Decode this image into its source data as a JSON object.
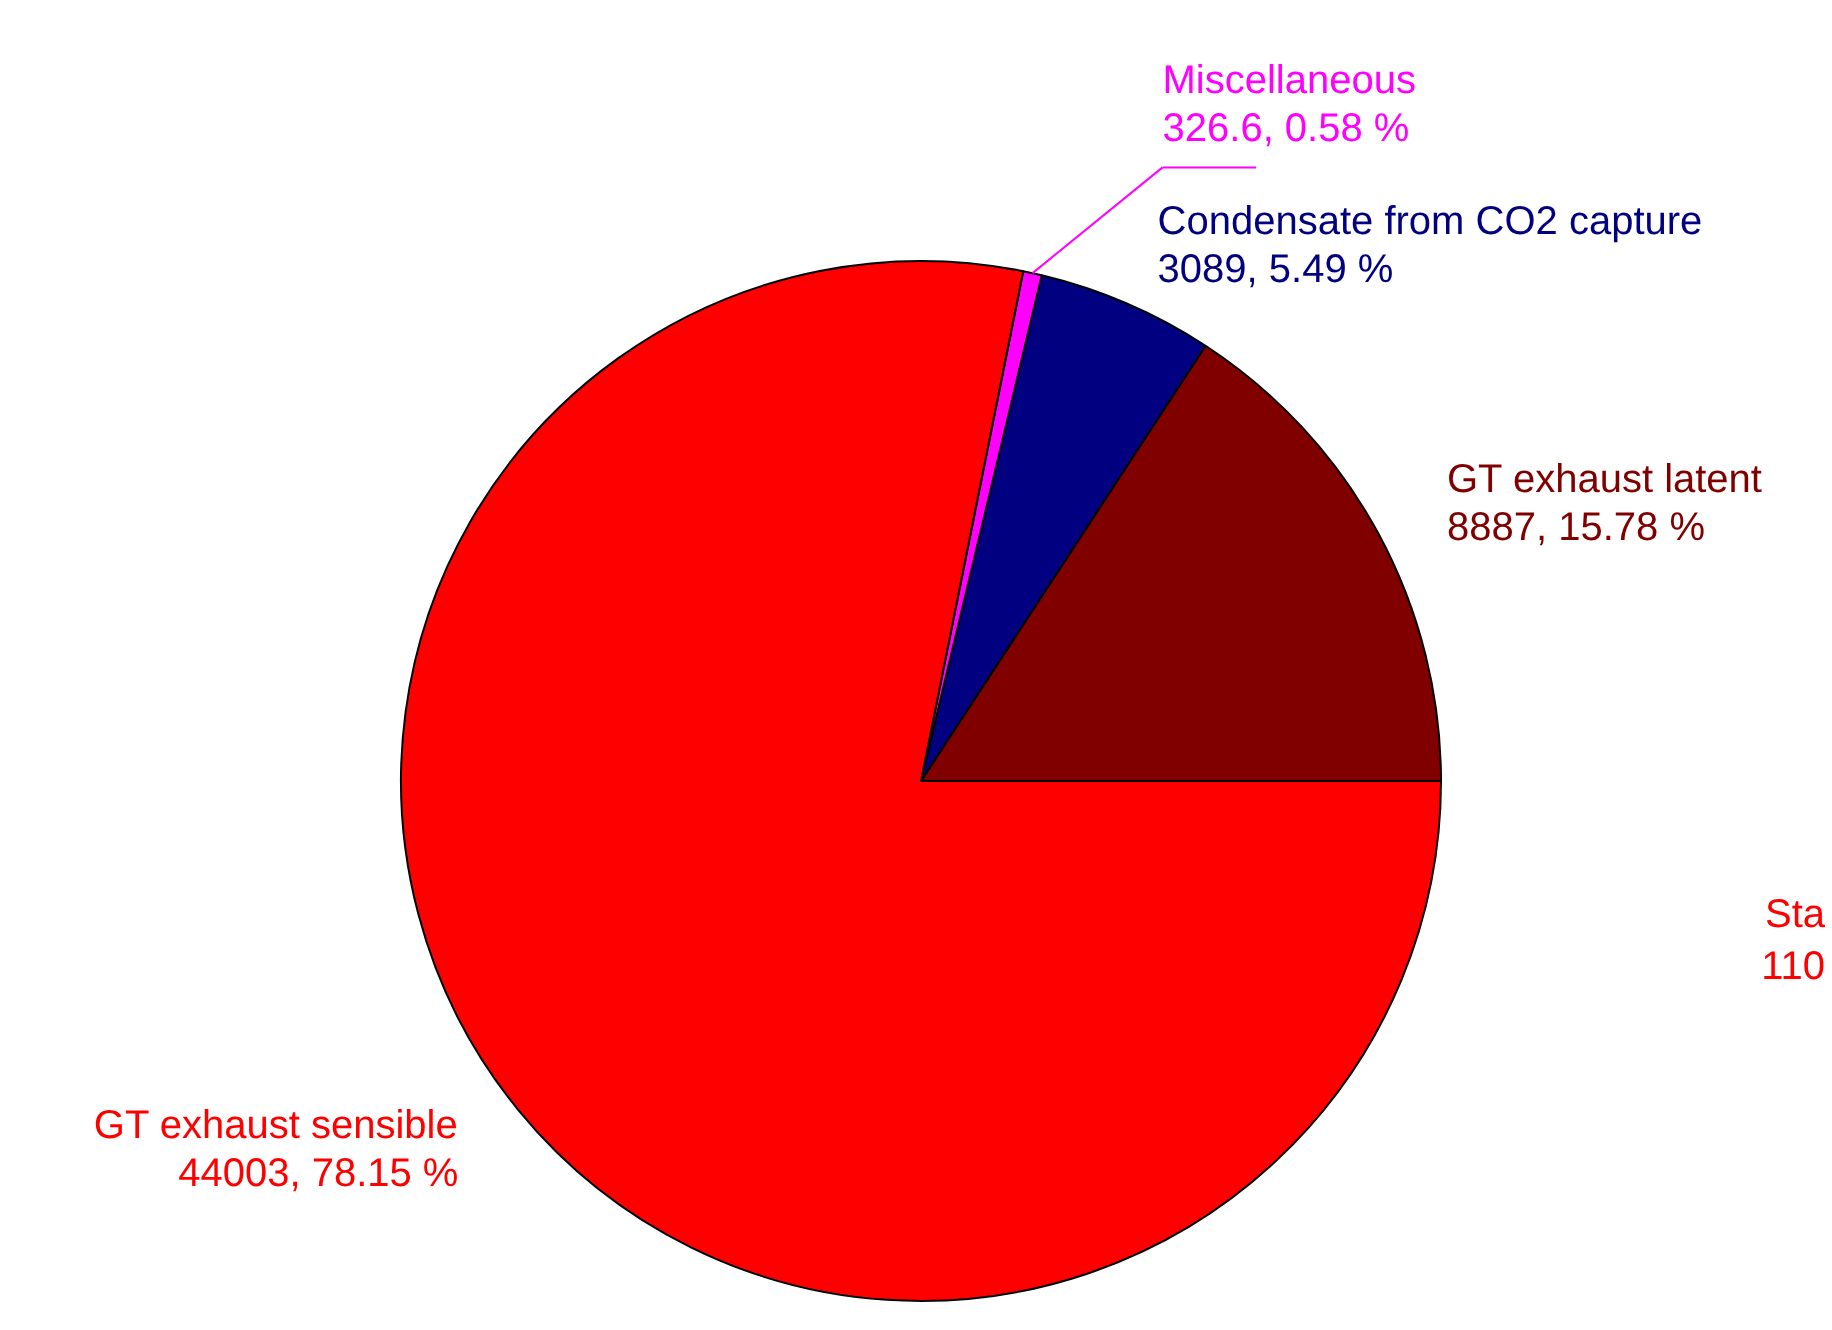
{
  "chart_data": {
    "type": "pie",
    "categories": [
      "GT exhaust latent",
      "Condensate from CO2 capture",
      "Miscellaneous",
      "GT exhaust sensible"
    ],
    "values": [
      8887,
      3089,
      326.6,
      44003
    ],
    "colors": [
      "#800000",
      "#000080",
      "#ff00ff",
      "#ff0000"
    ],
    "value_labels": [
      "8887, 15.78 %",
      "3089, 5.49 %",
      "326.6, 0.58 %",
      "44003, 78.15 %"
    ],
    "annotations": [
      "Sta",
      "110"
    ]
  }
}
